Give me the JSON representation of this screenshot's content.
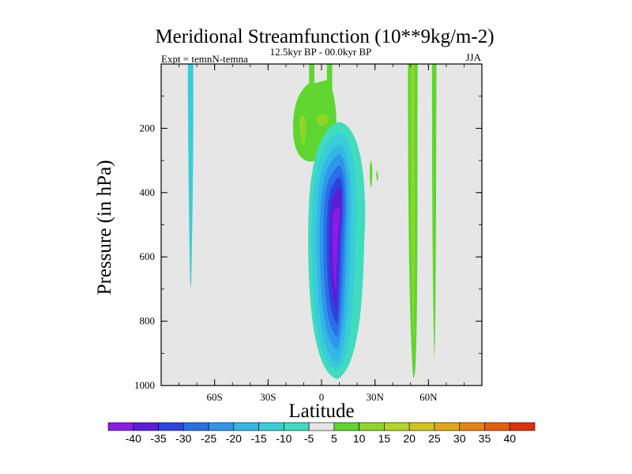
{
  "chart_data": {
    "type": "contour",
    "title": "Meridional Streamfunction (10**9kg/m-2)",
    "subtitle": "12.5kyr BP - 00.0kyr BP",
    "left_label": "Expt = temnN-temna",
    "season": "JJA",
    "xlabel": "Latitude",
    "ylabel": "Pressure (in hPa)",
    "xlim": [
      -90,
      90
    ],
    "ylim": [
      1000,
      0
    ],
    "x_ticks": [
      {
        "value": -60,
        "label": "60S"
      },
      {
        "value": -30,
        "label": "30S"
      },
      {
        "value": 0,
        "label": "0"
      },
      {
        "value": 30,
        "label": "30N"
      },
      {
        "value": 60,
        "label": "60N"
      }
    ],
    "y_ticks": [
      {
        "value": 200,
        "label": "200"
      },
      {
        "value": 400,
        "label": "400"
      },
      {
        "value": 600,
        "label": "600"
      },
      {
        "value": 800,
        "label": "800"
      },
      {
        "value": 1000,
        "label": "1000"
      }
    ],
    "colorbar": {
      "levels": [
        -40,
        -35,
        -30,
        -25,
        -20,
        -15,
        -10,
        -5,
        5,
        10,
        15,
        20,
        25,
        30,
        35,
        40
      ],
      "colors": [
        "#8a1ce6",
        "#5a1ed8",
        "#2d43e0",
        "#2a6fe6",
        "#2f97ea",
        "#33b8e6",
        "#39cdd8",
        "#3fdcc0",
        "#e6e6e6",
        "#5fd62f",
        "#8fd62a",
        "#b6d424",
        "#d2c41e",
        "#e0a818",
        "#e48414",
        "#e45e10",
        "#e03008"
      ]
    },
    "anomalies": [
      {
        "name": "sh-polar-column",
        "level": -10,
        "lat": [
          -75,
          -72
        ],
        "p": [
          0,
          700
        ]
      },
      {
        "name": "tropical-upper-cell",
        "level": 5,
        "lat": [
          -16,
          10
        ],
        "p": [
          0,
          310
        ]
      },
      {
        "name": "upper-core-1",
        "level": 10,
        "lat": [
          -12,
          -9
        ],
        "p": [
          150,
          250
        ]
      },
      {
        "name": "upper-core-2",
        "level": 10,
        "lat": [
          -3,
          4
        ],
        "p": [
          150,
          200
        ]
      },
      {
        "name": "main-negative-cell",
        "level": -40,
        "lat": [
          -8,
          24
        ],
        "p": [
          180,
          980
        ],
        "center": [
          8,
          550
        ]
      },
      {
        "name": "nh-small-positive",
        "level": 5,
        "lat": [
          27,
          31
        ],
        "p": [
          320,
          370
        ]
      },
      {
        "name": "nh-column-1",
        "level": 10,
        "lat": [
          47,
          53
        ],
        "p": [
          0,
          960
        ]
      },
      {
        "name": "nh-column-2",
        "level": 5,
        "lat": [
          61,
          65
        ],
        "p": [
          0,
          920
        ]
      }
    ]
  }
}
